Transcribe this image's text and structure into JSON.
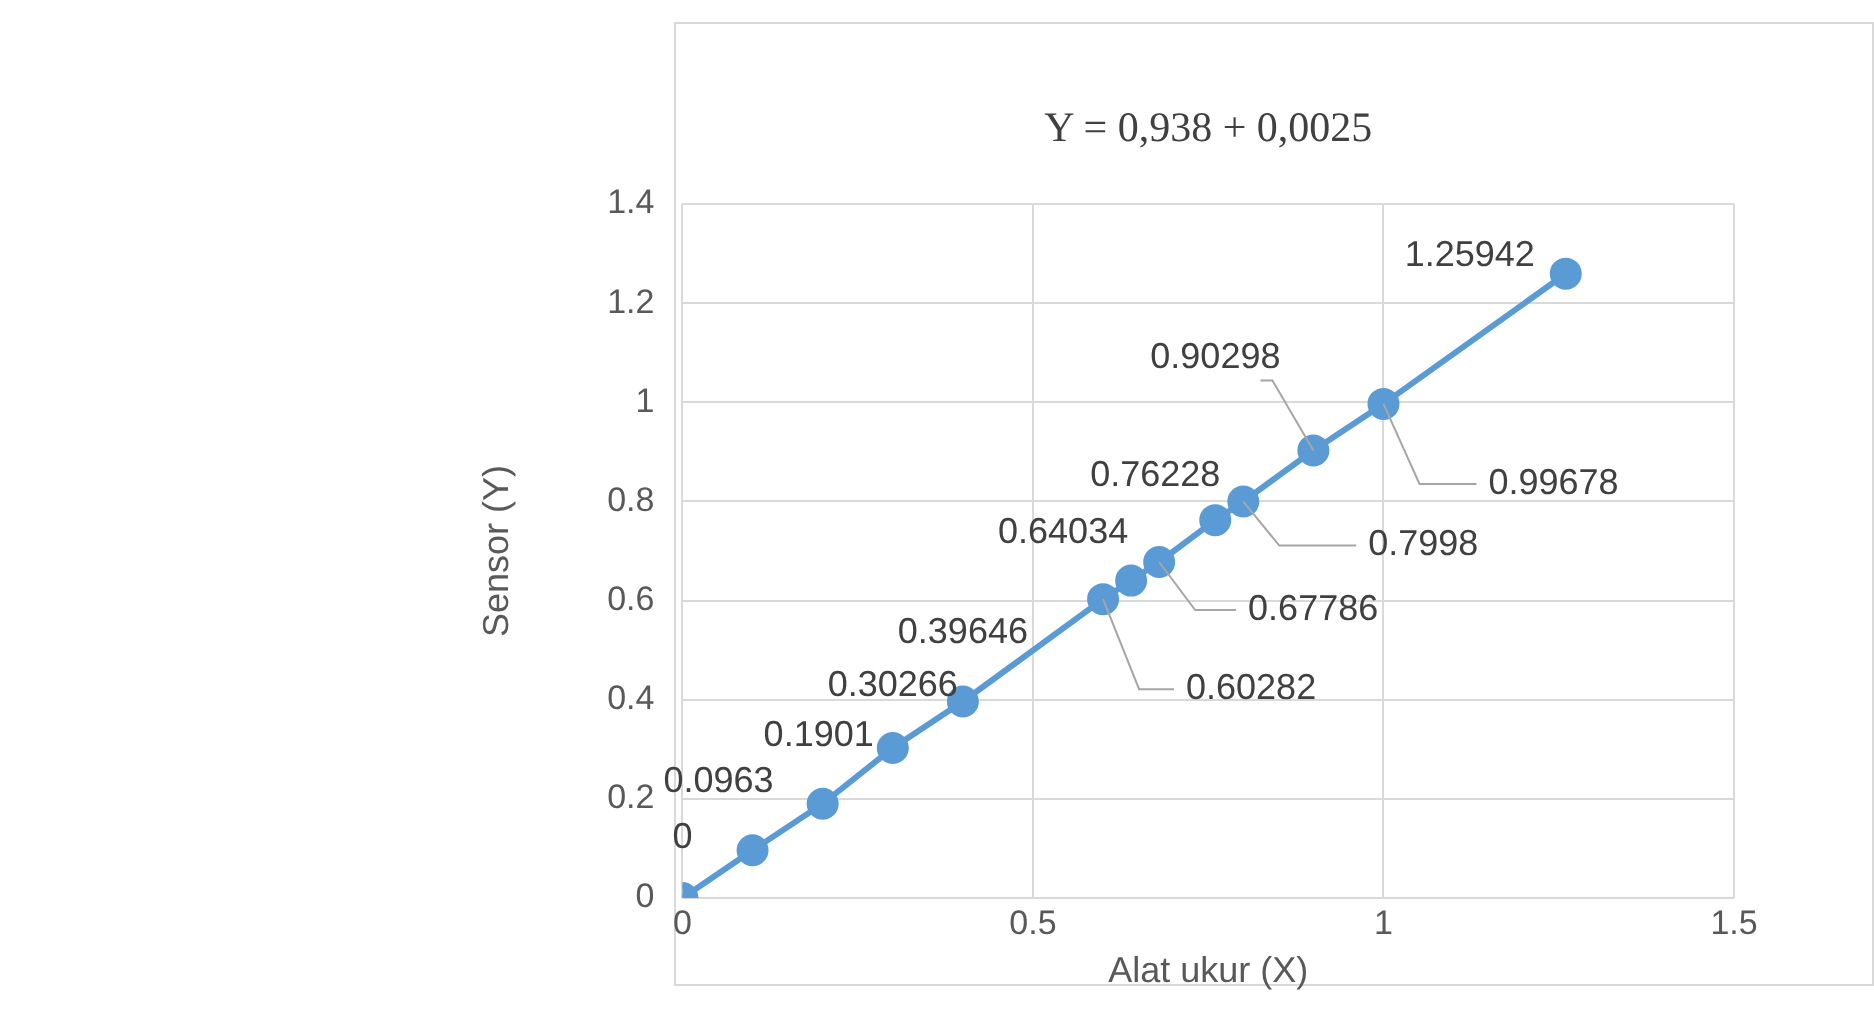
{
  "chart_data": {
    "type": "line",
    "title": "Y = 0,938 + 0,0025",
    "xlabel": "Alat ukur (X)",
    "ylabel": "Sensor (Y)",
    "series": [
      {
        "color": "#5b9bd5",
        "x": [
          0,
          0.1,
          0.2,
          0.3,
          0.4,
          0.6,
          0.64,
          0.68,
          0.76,
          0.8,
          0.9,
          1,
          1.26
        ],
        "values": [
          0,
          0.0963,
          0.1901,
          0.30266,
          0.39646,
          0.60282,
          0.64034,
          0.67786,
          0.76228,
          0.7998,
          0.90298,
          0.99678,
          1.25942
        ]
      }
    ],
    "xlim": [
      0,
      1.5
    ],
    "xticks": [
      0,
      0.5,
      1,
      1.5
    ],
    "ylim": [
      0,
      1.4
    ],
    "yticks": [
      0,
      0.2,
      0.4,
      0.6,
      0.8,
      1,
      1.2,
      1.4
    ],
    "grid": true,
    "legend": false,
    "marker": "circle",
    "line_style": "solid",
    "data_labels": true
  }
}
